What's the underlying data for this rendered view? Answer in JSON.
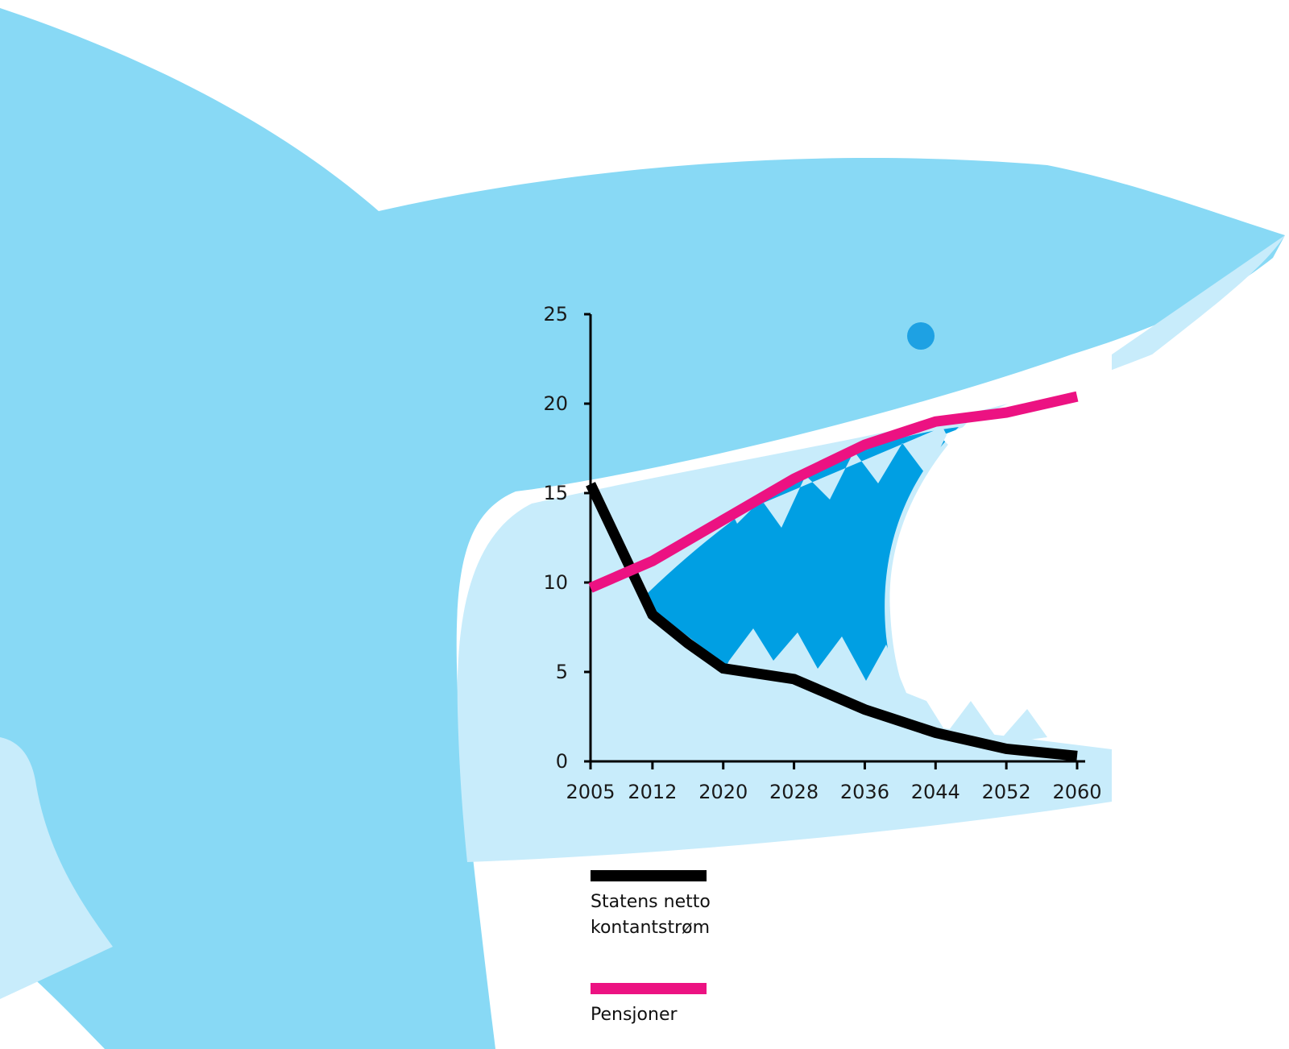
{
  "colors": {
    "shark_body": "#88d9f5",
    "shark_mouth_light": "#c8ecfb",
    "shark_mouth_inner": "#009fe3",
    "eye": "#1ea1e3",
    "axis": "#000000",
    "series_black": "#000000",
    "series_pink": "#ec1282"
  },
  "decoration": {
    "figure": "shark-illustration",
    "eye_icon": "shark-eye-icon"
  },
  "chart_data": {
    "type": "line",
    "x_ticks": [
      "2005",
      "2012",
      "2020",
      "2028",
      "2036",
      "2044",
      "2052",
      "2060"
    ],
    "y_ticks": [
      "0",
      "5",
      "10",
      "15",
      "20",
      "25"
    ],
    "ylim": [
      0,
      25
    ],
    "xlim": [
      2005,
      2060
    ],
    "grid": false,
    "legend_position": "bottom",
    "series": [
      {
        "name": "Statens netto\nkontantstrøm",
        "color": "#000000",
        "x": [
          2005,
          2012,
          2016,
          2020,
          2028,
          2036,
          2044,
          2052,
          2060
        ],
        "y": [
          15.5,
          8.2,
          6.6,
          5.2,
          4.6,
          2.9,
          1.6,
          0.7,
          0.3
        ]
      },
      {
        "name": "Pensjoner",
        "color": "#ec1282",
        "x": [
          2005,
          2012,
          2020,
          2028,
          2036,
          2044,
          2052,
          2060
        ],
        "y": [
          9.7,
          11.2,
          13.5,
          15.8,
          17.7,
          19.0,
          19.5,
          20.4
        ]
      }
    ]
  }
}
